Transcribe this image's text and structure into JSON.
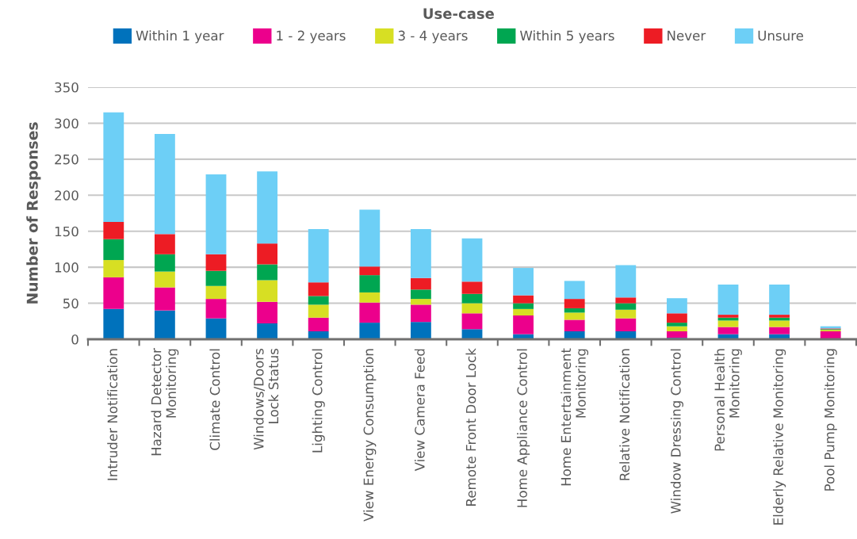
{
  "chart_data": {
    "type": "bar",
    "stacked": true,
    "legend": "top",
    "legend_title": "Use-case",
    "ylabel": "Number of Responses",
    "categories": [
      "Intruder Notification",
      "Hazard Detector\nMonitoring",
      "Climate Control",
      "Windows/Doors\nLock Status",
      "Lighting Control",
      "View Energy Consumption",
      "View Camera Feed",
      "Remote Front Door Lock",
      "Home Appliance Control",
      "Home Entertainment\nMonitoring",
      "Relative Notification",
      "Window Dressing Control",
      "Personal Health\nMonitoring",
      "Elderly Relative Monitoring",
      "Pool Pump Monitoring"
    ],
    "series": [
      {
        "name": "Within 1 year",
        "color": "#0072bc",
        "values": [
          42,
          40,
          29,
          22,
          11,
          23,
          24,
          14,
          7,
          11,
          11,
          2,
          7,
          7,
          0
        ]
      },
      {
        "name": "1 - 2 years",
        "color": "#ec008c",
        "values": [
          44,
          32,
          27,
          30,
          19,
          28,
          24,
          22,
          26,
          16,
          18,
          9,
          10,
          10,
          11
        ]
      },
      {
        "name": "3 - 4 years",
        "color": "#d7df23",
        "values": [
          24,
          22,
          18,
          30,
          18,
          14,
          8,
          14,
          9,
          10,
          12,
          7,
          9,
          9,
          2
        ]
      },
      {
        "name": "Within 5 years",
        "color": "#00a651",
        "values": [
          29,
          24,
          21,
          22,
          12,
          24,
          13,
          13,
          8,
          6,
          9,
          5,
          4,
          4,
          1
        ]
      },
      {
        "name": "Never",
        "color": "#ed1c24",
        "values": [
          24,
          28,
          23,
          29,
          19,
          12,
          16,
          17,
          11,
          13,
          8,
          13,
          4,
          4,
          1
        ]
      },
      {
        "name": "Unsure",
        "color": "#6dcff6",
        "values": [
          152,
          139,
          111,
          100,
          74,
          79,
          68,
          60,
          38,
          25,
          45,
          21,
          42,
          42,
          3
        ]
      }
    ],
    "ylim": [
      0,
      350
    ],
    "yticks": [
      0,
      50,
      100,
      150,
      200,
      250,
      300,
      350
    ],
    "grid": "y"
  }
}
